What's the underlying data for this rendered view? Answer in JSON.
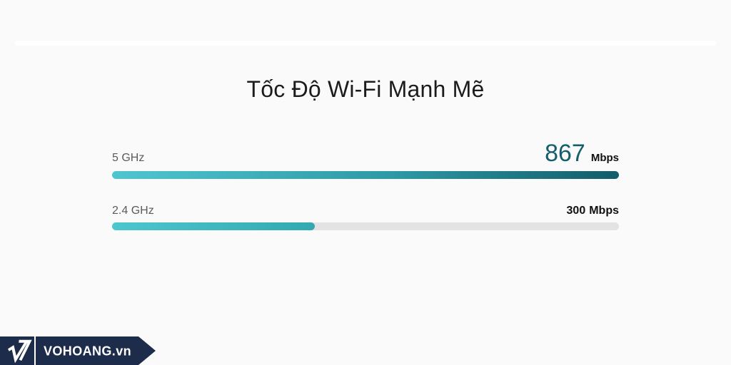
{
  "section": {
    "title": "Tốc Độ Wi-Fi Mạnh Mẽ"
  },
  "chart_data": {
    "type": "bar",
    "orientation": "horizontal",
    "title": "Tốc Độ Wi-Fi Mạnh Mẽ",
    "categories": [
      "5 GHz",
      "2.4 GHz"
    ],
    "values": [
      867,
      300
    ],
    "unit": "Mbps",
    "series": [
      {
        "name": "5 GHz",
        "value": 867,
        "fill_percent": 100
      },
      {
        "name": "2.4 GHz",
        "value": 300,
        "fill_percent": 40
      }
    ],
    "xlim": [
      0,
      750
    ],
    "grid": false,
    "legend": false
  },
  "rows": [
    {
      "label": "5 GHz",
      "value": "867",
      "unit": "Mbps",
      "fill_percent": 100
    },
    {
      "label": "2.4 GHz",
      "value": "300",
      "unit": "Mbps",
      "fill_percent": 40
    }
  ],
  "watermark": {
    "brand": "VOHOANG.vn",
    "monogram_icon": "vh-monogram-icon"
  },
  "colors": {
    "page_background": "#fafafa",
    "bar_teal_light": "#4ec6cf",
    "bar_teal_mid": "#33a8b1",
    "bar_teal_dark": "#135c69",
    "bar_track_gray": "#e3e3e3",
    "value_accent_teal": "#155f6c",
    "label_gray": "#5b5b5b",
    "text_black": "#111111",
    "watermark_navy": "#1e2c4c"
  }
}
